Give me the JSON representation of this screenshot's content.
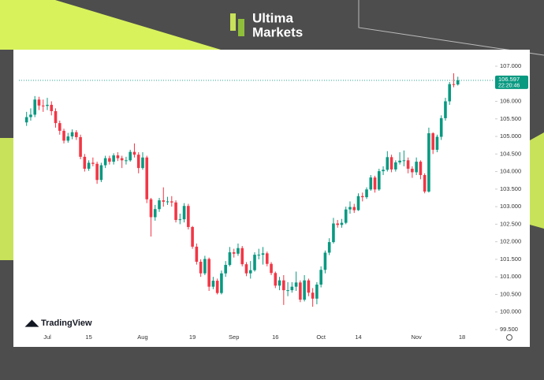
{
  "header": {
    "brand_line1": "Ultima",
    "brand_line2": "Markets"
  },
  "chart_data": {
    "type": "candlestick",
    "watermark": "TradingView",
    "up_color": "#089981",
    "down_color": "#f23645",
    "categories": [
      null,
      null,
      null,
      null,
      null,
      "Jul",
      null,
      null,
      null,
      null,
      null,
      null,
      null,
      null,
      null,
      "15",
      null,
      null,
      null,
      null,
      null,
      null,
      null,
      null,
      null,
      null,
      null,
      null,
      "Aug",
      null,
      null,
      null,
      null,
      null,
      null,
      null,
      null,
      null,
      null,
      null,
      "19",
      null,
      null,
      null,
      null,
      null,
      null,
      null,
      null,
      null,
      "Sep",
      null,
      null,
      null,
      null,
      null,
      null,
      null,
      null,
      null,
      "16",
      null,
      null,
      null,
      null,
      null,
      null,
      null,
      null,
      null,
      null,
      "Oct",
      null,
      null,
      null,
      null,
      null,
      null,
      null,
      null,
      "14",
      null,
      null,
      null,
      null,
      null,
      null,
      null,
      null,
      null,
      null,
      null,
      null,
      null,
      "Nov",
      null,
      null,
      null,
      null,
      null,
      null,
      null,
      null,
      null,
      null,
      "18"
    ],
    "open": [
      105.4,
      105.55,
      105.62,
      106.05,
      105.88,
      105.87,
      105.9,
      105.72,
      105.38,
      105.16,
      104.88,
      105.0,
      105.12,
      104.98,
      104.42,
      104.08,
      104.25,
      104.22,
      103.76,
      104.18,
      104.38,
      104.28,
      104.46,
      104.38,
      104.32,
      104.32,
      104.56,
      104.48,
      104.1,
      104.4,
      103.21,
      102.7,
      102.93,
      103.18,
      103.14,
      103.15,
      103.12,
      102.62,
      102.64,
      103.02,
      102.42,
      101.86,
      101.43,
      101.1,
      101.51,
      100.72,
      100.89,
      100.54,
      101.1,
      101.34,
      101.7,
      101.66,
      101.82,
      101.36,
      101.1,
      101.19,
      101.63,
      101.63,
      101.67,
      101.37,
      101.11,
      100.75,
      100.9,
      100.62,
      100.62,
      100.72,
      100.84,
      100.35,
      100.9,
      100.55,
      100.38,
      100.78,
      101.2,
      101.69,
      101.99,
      102.52,
      102.48,
      102.54,
      102.92,
      102.99,
      102.9,
      103.3,
      103.27,
      103.49,
      103.83,
      103.49,
      104.01,
      104.05,
      104.41,
      104.06,
      104.26,
      104.31,
      104.32,
      104.08,
      103.98,
      104.28,
      103.9,
      103.43,
      105.09,
      104.62,
      104.99,
      105.52,
      106.0,
      106.49,
      106.48,
      null
    ],
    "high": [
      105.7,
      105.8,
      106.15,
      106.13,
      106.05,
      106.1,
      106.0,
      105.8,
      105.45,
      105.22,
      105.1,
      105.2,
      105.18,
      105.05,
      104.5,
      104.32,
      104.4,
      104.28,
      104.25,
      104.45,
      104.45,
      104.52,
      104.55,
      104.45,
      104.42,
      104.62,
      104.8,
      104.55,
      104.55,
      104.45,
      103.25,
      103.05,
      103.25,
      103.55,
      103.28,
      103.3,
      103.18,
      102.8,
      103.1,
      103.08,
      102.45,
      101.95,
      101.5,
      101.6,
      101.55,
      101.0,
      100.95,
      101.18,
      101.45,
      101.85,
      101.8,
      101.95,
      101.88,
      101.42,
      101.45,
      101.7,
      101.8,
      101.85,
      101.72,
      101.42,
      101.15,
      101.0,
      101.05,
      100.85,
      100.85,
      101.15,
      100.9,
      101.05,
      100.95,
      100.68,
      100.85,
      101.3,
      101.75,
      102.1,
      102.68,
      102.62,
      102.65,
      103.0,
      103.15,
      103.08,
      103.38,
      103.4,
      103.55,
      103.9,
      103.88,
      104.08,
      104.15,
      104.58,
      104.48,
      104.32,
      104.55,
      104.6,
      104.4,
      104.15,
      104.4,
      104.32,
      103.95,
      105.25,
      105.12,
      105.05,
      105.6,
      106.1,
      106.55,
      106.8,
      106.7,
      null
    ],
    "low": [
      105.3,
      105.45,
      105.55,
      105.75,
      105.7,
      105.75,
      105.6,
      105.25,
      105.05,
      104.8,
      104.82,
      104.92,
      104.9,
      104.35,
      104.0,
      104.02,
      104.15,
      103.65,
      103.7,
      104.1,
      104.2,
      104.2,
      104.3,
      104.1,
      104.2,
      104.28,
      104.4,
      103.95,
      104.05,
      103.1,
      102.15,
      102.6,
      102.85,
      103.0,
      103.05,
      103.0,
      102.55,
      102.5,
      102.55,
      102.35,
      101.8,
      101.35,
      101.0,
      101.05,
      100.6,
      100.65,
      100.5,
      100.5,
      101.0,
      101.3,
      101.55,
      101.6,
      101.3,
      101.02,
      100.95,
      101.15,
      101.5,
      101.35,
      101.3,
      101.05,
      100.68,
      100.62,
      100.2,
      100.45,
      100.55,
      100.6,
      100.28,
      100.3,
      100.45,
      100.15,
      100.22,
      100.7,
      101.1,
      101.62,
      101.95,
      102.4,
      102.4,
      102.5,
      102.8,
      102.82,
      102.88,
      103.15,
      103.22,
      103.45,
      103.4,
      103.45,
      103.9,
      104.0,
      103.98,
      104.0,
      104.2,
      104.15,
      103.95,
      103.82,
      103.9,
      103.78,
      103.38,
      103.4,
      104.5,
      104.55,
      104.9,
      105.45,
      105.9,
      106.4,
      106.45,
      null
    ],
    "close": [
      105.55,
      105.62,
      106.05,
      105.88,
      105.87,
      105.9,
      105.72,
      105.38,
      105.16,
      104.88,
      105.0,
      105.12,
      104.98,
      104.42,
      104.08,
      104.25,
      104.22,
      103.76,
      104.18,
      104.38,
      104.28,
      104.46,
      104.38,
      104.32,
      104.32,
      104.56,
      104.48,
      104.1,
      104.4,
      103.21,
      102.7,
      102.93,
      103.18,
      103.14,
      103.15,
      103.12,
      102.62,
      102.64,
      103.02,
      102.42,
      101.86,
      101.43,
      101.1,
      101.51,
      100.72,
      100.89,
      100.54,
      101.1,
      101.34,
      101.7,
      101.66,
      101.82,
      101.36,
      101.1,
      101.19,
      101.63,
      101.63,
      101.67,
      101.37,
      101.11,
      100.75,
      100.9,
      100.62,
      100.62,
      100.72,
      100.84,
      100.35,
      100.9,
      100.55,
      100.38,
      100.78,
      101.2,
      101.69,
      101.99,
      102.52,
      102.48,
      102.54,
      102.92,
      102.99,
      102.9,
      103.3,
      103.27,
      103.49,
      103.83,
      103.49,
      104.01,
      104.05,
      104.41,
      104.06,
      104.26,
      104.31,
      104.32,
      104.08,
      103.98,
      104.28,
      103.9,
      103.43,
      105.09,
      104.62,
      104.99,
      105.52,
      106.0,
      106.49,
      106.48,
      106.597,
      null
    ],
    "last_price": 106.597,
    "countdown": "22:20:46",
    "ylim": [
      99.275,
      107.314
    ],
    "yticks": [
      {
        "value": 99.5,
        "label": "99.500"
      },
      {
        "value": 100,
        "label": "100.000"
      },
      {
        "value": 100.5,
        "label": "100.500"
      },
      {
        "value": 101,
        "label": "101.000"
      },
      {
        "value": 101.5,
        "label": "101.500"
      },
      {
        "value": 102,
        "label": "102.000"
      },
      {
        "value": 102.5,
        "label": "102.500"
      },
      {
        "value": 103,
        "label": "103.000"
      },
      {
        "value": 103.5,
        "label": "103.500"
      },
      {
        "value": 104,
        "label": "104.000"
      },
      {
        "value": 104.5,
        "label": "104.500"
      },
      {
        "value": 105,
        "label": "105.000"
      },
      {
        "value": 105.5,
        "label": "105.500"
      },
      {
        "value": 106,
        "label": "106.000"
      },
      {
        "value": 106.5,
        "label": "106.500"
      },
      {
        "value": 107,
        "label": "107.000"
      }
    ],
    "grid": false
  }
}
